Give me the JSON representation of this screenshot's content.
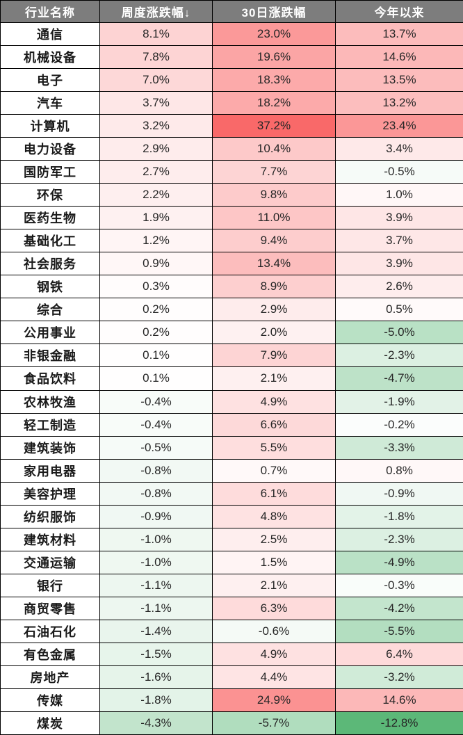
{
  "colors": {
    "header_bg": "#7d7d7d",
    "header_text": "#ffffff",
    "border": "#000000",
    "name_text": "#1a1a1a",
    "value_text": "#262626",
    "name_bg": "#ffffff"
  },
  "chart_data": {
    "type": "table",
    "title": "",
    "columns": [
      "行业名称",
      "周度涨跌幅",
      "30日涨跌幅",
      "今年以来"
    ],
    "sort": {
      "column": "周度涨跌幅",
      "direction": "descending",
      "glyph": "↓"
    },
    "value_format": "one_decimal_percent",
    "heatmap": {
      "description": "cell background color scale across all value columns",
      "max": 37.2,
      "min": -12.8,
      "neutral_color": "#ffffff",
      "positive_color": "#f96969",
      "negative_color": "#5cb878",
      "positive_gamma": 0.8,
      "negative_gamma": 0.9
    },
    "rows": [
      [
        "通信",
        8.1,
        23.0,
        13.7
      ],
      [
        "机械设备",
        7.8,
        19.6,
        14.6
      ],
      [
        "电子",
        7.0,
        18.3,
        13.5
      ],
      [
        "汽车",
        3.7,
        18.2,
        13.2
      ],
      [
        "计算机",
        3.2,
        37.2,
        23.4
      ],
      [
        "电力设备",
        2.9,
        10.4,
        3.4
      ],
      [
        "国防军工",
        2.7,
        7.7,
        -0.5
      ],
      [
        "环保",
        2.2,
        9.8,
        1.0
      ],
      [
        "医药生物",
        1.9,
        11.0,
        3.9
      ],
      [
        "基础化工",
        1.2,
        9.4,
        3.7
      ],
      [
        "社会服务",
        0.9,
        13.4,
        3.9
      ],
      [
        "钢铁",
        0.3,
        8.9,
        2.6
      ],
      [
        "综合",
        0.2,
        2.9,
        0.5
      ],
      [
        "公用事业",
        0.2,
        2.0,
        -5.0
      ],
      [
        "非银金融",
        0.1,
        7.9,
        -2.3
      ],
      [
        "食品饮料",
        0.1,
        2.1,
        -4.7
      ],
      [
        "农林牧渔",
        -0.4,
        4.9,
        -1.9
      ],
      [
        "轻工制造",
        -0.4,
        6.6,
        -0.2
      ],
      [
        "建筑装饰",
        -0.5,
        5.5,
        -3.3
      ],
      [
        "家用电器",
        -0.8,
        0.7,
        0.8
      ],
      [
        "美容护理",
        -0.8,
        6.1,
        -0.9
      ],
      [
        "纺织服饰",
        -0.9,
        4.8,
        -1.8
      ],
      [
        "建筑材料",
        -1.0,
        2.5,
        -2.3
      ],
      [
        "交通运输",
        -1.0,
        1.5,
        -4.9
      ],
      [
        "银行",
        -1.1,
        2.1,
        -0.3
      ],
      [
        "商贸零售",
        -1.1,
        6.3,
        -4.2
      ],
      [
        "石油石化",
        -1.4,
        -0.6,
        -5.5
      ],
      [
        "有色金属",
        -1.5,
        4.9,
        6.4
      ],
      [
        "房地产",
        -1.6,
        4.4,
        -3.2
      ],
      [
        "传媒",
        -1.8,
        24.9,
        14.6
      ],
      [
        "煤炭",
        -4.3,
        -5.7,
        -12.8
      ]
    ]
  }
}
